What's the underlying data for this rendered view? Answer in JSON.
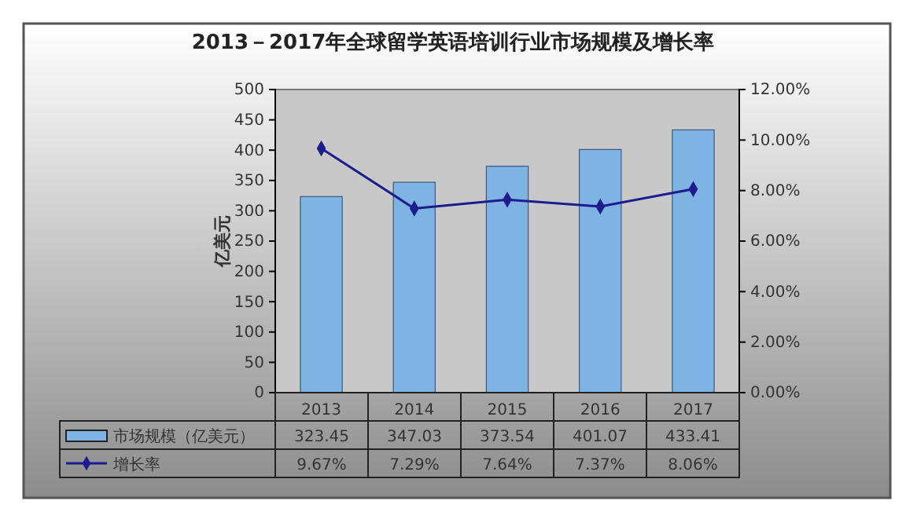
{
  "chart_data": {
    "type": "bar",
    "title": "2013－2017年全球留学英语培训行业市场规模及增长率",
    "ylabel": "亿美元",
    "categories": [
      "2013",
      "2014",
      "2015",
      "2016",
      "2017"
    ],
    "series": [
      {
        "name": "市场规模（亿美元）",
        "color": "#7fb3e3",
        "values": [
          323.45,
          347.03,
          373.54,
          401.07,
          433.41
        ]
      },
      {
        "name": "增长率",
        "type": "line",
        "axis": "y2",
        "color": "#1c1c8e",
        "values": [
          9.67,
          7.29,
          7.64,
          7.37,
          8.06
        ],
        "value_labels": [
          "9.67%",
          "7.29%",
          "7.64%",
          "7.37%",
          "8.06%"
        ]
      }
    ],
    "ylim": [
      0,
      500
    ],
    "yticks": [
      0,
      50,
      100,
      150,
      200,
      250,
      300,
      350,
      400,
      450,
      500
    ],
    "y2lim": [
      0,
      12
    ],
    "y2ticks": [
      {
        "value": 0,
        "label": "0.00%"
      },
      {
        "value": 2,
        "label": "2.00%"
      },
      {
        "value": 4,
        "label": "4.00%"
      },
      {
        "value": 6,
        "label": "6.00%"
      },
      {
        "value": 8,
        "label": "8.00%"
      },
      {
        "value": 10,
        "label": "10.00%"
      },
      {
        "value": 12,
        "label": "12.00%"
      }
    ],
    "data_labels": true,
    "legend": "bottom",
    "marker": "diamond",
    "line_style": "solid",
    "grid": false
  }
}
